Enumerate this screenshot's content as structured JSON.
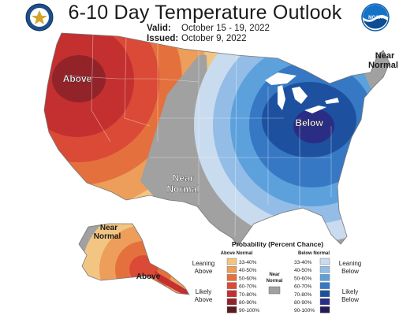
{
  "header": {
    "title": "6-10 Day Temperature Outlook",
    "valid_label": "Valid:",
    "valid_value": "October 15 - 19, 2022",
    "issued_label": "Issued:",
    "issued_value": "October 9, 2022"
  },
  "logos": {
    "left": "department-of-commerce-seal",
    "right": "noaa-logo",
    "right_text": "NOAA"
  },
  "map_labels": {
    "above_west": "Above",
    "below_east": "Below",
    "near_normal_center_1": "Near",
    "near_normal_center_2": "Normal",
    "near_normal_ne_1": "Near",
    "near_normal_ne_2": "Normal",
    "near_normal_ak_1": "Near",
    "near_normal_ak_2": "Normal",
    "above_ak": "Above"
  },
  "legend": {
    "title": "Probability (Percent Chance)",
    "above_header": "Above Normal",
    "below_header": "Below Normal",
    "near_normal_1": "Near",
    "near_normal_2": "Normal",
    "leaning_above_1": "Leaning",
    "leaning_above_2": "Above",
    "likely_above_1": "Likely",
    "likely_above_2": "Above",
    "leaning_below_1": "Leaning",
    "leaning_below_2": "Below",
    "likely_below_1": "Likely",
    "likely_below_2": "Below",
    "above_bins": [
      {
        "label": "33-40%",
        "color": "#f3c582"
      },
      {
        "label": "40-50%",
        "color": "#ec9e5a"
      },
      {
        "label": "50-60%",
        "color": "#e4713d"
      },
      {
        "label": "60-70%",
        "color": "#db4a37"
      },
      {
        "label": "70-80%",
        "color": "#c4302f"
      },
      {
        "label": "80-90%",
        "color": "#922329"
      },
      {
        "label": "90-100%",
        "color": "#5b1a1e"
      }
    ],
    "below_bins": [
      {
        "label": "33-40%",
        "color": "#c9dbee"
      },
      {
        "label": "40-50%",
        "color": "#93bde6"
      },
      {
        "label": "50-60%",
        "color": "#5da1dc"
      },
      {
        "label": "60-70%",
        "color": "#3678c3"
      },
      {
        "label": "70-80%",
        "color": "#1d51a0"
      },
      {
        "label": "80-90%",
        "color": "#292e84"
      },
      {
        "label": "90-100%",
        "color": "#281a57"
      }
    ],
    "near_normal_color": "#a1a1a1"
  }
}
